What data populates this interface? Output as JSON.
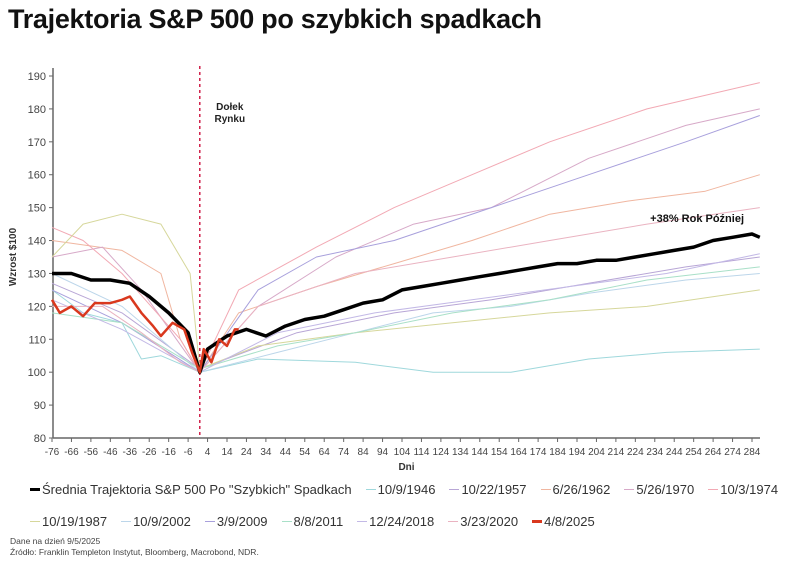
{
  "title": "Trajektoria S&P 500 po szybkich spadkach",
  "footer": {
    "date_note": "Dane na dzień 9/5/2025",
    "source": "Źródło: Franklin Templeton Instytut, Bloomberg, Macrobond, NDR."
  },
  "chart_data": {
    "type": "line",
    "title": "Trajektoria S&P 500 po szybkich spadkach",
    "xlabel": "Dni",
    "ylabel": "Wzrost $100",
    "xlim": [
      -76,
      288
    ],
    "ylim": [
      80,
      190
    ],
    "xticks": [
      -76,
      -66,
      -56,
      -46,
      -36,
      -26,
      -16,
      -6,
      4,
      14,
      24,
      34,
      44,
      54,
      64,
      74,
      84,
      94,
      104,
      114,
      124,
      134,
      144,
      154,
      164,
      174,
      184,
      194,
      204,
      214,
      224,
      234,
      244,
      254,
      264,
      274,
      284
    ],
    "yticks": [
      80,
      90,
      100,
      110,
      120,
      130,
      140,
      150,
      160,
      170,
      180,
      190
    ],
    "grid": false,
    "legend_placement": "bottom",
    "annotations": [
      {
        "text_lines": [
          "Dołek",
          "Rynku"
        ],
        "x": 0,
        "style": "dashed vertical line"
      },
      {
        "text": "+38% Rok Później",
        "x": 284,
        "y": 142
      }
    ],
    "series": [
      {
        "name": "10/9/1946",
        "color": "#9fd8dc",
        "width": 1,
        "points": [
          [
            -76,
            125
          ],
          [
            -60,
            118
          ],
          [
            -40,
            115
          ],
          [
            -30,
            104
          ],
          [
            -20,
            105
          ],
          [
            0,
            100
          ],
          [
            30,
            104
          ],
          [
            80,
            103
          ],
          [
            120,
            100
          ],
          [
            160,
            100
          ],
          [
            200,
            104
          ],
          [
            240,
            106
          ],
          [
            288,
            107
          ]
        ]
      },
      {
        "name": "10/22/1957",
        "color": "#b8a6d6",
        "width": 1,
        "points": [
          [
            -76,
            127
          ],
          [
            -40,
            118
          ],
          [
            0,
            101
          ],
          [
            50,
            112
          ],
          [
            100,
            118
          ],
          [
            150,
            122
          ],
          [
            200,
            127
          ],
          [
            250,
            132
          ],
          [
            288,
            135
          ]
        ]
      },
      {
        "name": "6/26/1962",
        "color": "#f0b6a0",
        "width": 1,
        "points": [
          [
            -76,
            140
          ],
          [
            -40,
            137
          ],
          [
            -20,
            130
          ],
          [
            -10,
            110
          ],
          [
            0,
            100
          ],
          [
            20,
            118
          ],
          [
            60,
            126
          ],
          [
            100,
            133
          ],
          [
            140,
            140
          ],
          [
            180,
            148
          ],
          [
            220,
            152
          ],
          [
            260,
            155
          ],
          [
            288,
            160
          ]
        ]
      },
      {
        "name": "5/26/1970",
        "color": "#d7a9c8",
        "width": 1,
        "points": [
          [
            -76,
            135
          ],
          [
            -50,
            138
          ],
          [
            -30,
            125
          ],
          [
            0,
            100
          ],
          [
            30,
            120
          ],
          [
            70,
            135
          ],
          [
            110,
            145
          ],
          [
            150,
            150
          ],
          [
            200,
            165
          ],
          [
            250,
            175
          ],
          [
            288,
            180
          ]
        ]
      },
      {
        "name": "10/3/1974",
        "color": "#f2a9b4",
        "width": 1,
        "points": [
          [
            -76,
            144
          ],
          [
            -60,
            140
          ],
          [
            -40,
            130
          ],
          [
            -10,
            110
          ],
          [
            0,
            100
          ],
          [
            20,
            125
          ],
          [
            60,
            138
          ],
          [
            100,
            150
          ],
          [
            140,
            160
          ],
          [
            180,
            170
          ],
          [
            230,
            180
          ],
          [
            288,
            188
          ]
        ]
      },
      {
        "name": "10/19/1987",
        "color": "#d6d79b",
        "width": 1,
        "points": [
          [
            -76,
            135
          ],
          [
            -60,
            145
          ],
          [
            -40,
            148
          ],
          [
            -20,
            145
          ],
          [
            -5,
            130
          ],
          [
            0,
            101
          ],
          [
            30,
            108
          ],
          [
            80,
            112
          ],
          [
            130,
            115
          ],
          [
            180,
            118
          ],
          [
            230,
            120
          ],
          [
            288,
            125
          ]
        ]
      },
      {
        "name": "10/9/2002",
        "color": "#bcd6ea",
        "width": 1,
        "points": [
          [
            -76,
            130
          ],
          [
            -40,
            120
          ],
          [
            0,
            100
          ],
          [
            40,
            106
          ],
          [
            80,
            112
          ],
          [
            120,
            118
          ],
          [
            160,
            120
          ],
          [
            200,
            124
          ],
          [
            250,
            128
          ],
          [
            288,
            130
          ]
        ]
      },
      {
        "name": "3/9/2009",
        "color": "#a8a0dc",
        "width": 1,
        "points": [
          [
            -76,
            125
          ],
          [
            -40,
            115
          ],
          [
            0,
            100
          ],
          [
            30,
            125
          ],
          [
            60,
            135
          ],
          [
            100,
            140
          ],
          [
            150,
            150
          ],
          [
            200,
            160
          ],
          [
            250,
            170
          ],
          [
            288,
            178
          ]
        ]
      },
      {
        "name": "8/8/2011",
        "color": "#a9e0c8",
        "width": 1,
        "points": [
          [
            -76,
            118
          ],
          [
            -40,
            115
          ],
          [
            0,
            101
          ],
          [
            40,
            108
          ],
          [
            80,
            112
          ],
          [
            130,
            118
          ],
          [
            180,
            122
          ],
          [
            230,
            128
          ],
          [
            288,
            132
          ]
        ]
      },
      {
        "name": "12/24/2018",
        "color": "#c3b9e6",
        "width": 1,
        "points": [
          [
            -76,
            122
          ],
          [
            -40,
            113
          ],
          [
            0,
            100
          ],
          [
            40,
            112
          ],
          [
            90,
            118
          ],
          [
            140,
            122
          ],
          [
            190,
            126
          ],
          [
            240,
            130
          ],
          [
            288,
            136
          ]
        ]
      },
      {
        "name": "3/23/2020",
        "color": "#eab3c1",
        "width": 1,
        "points": [
          [
            -76,
            120
          ],
          [
            -50,
            120
          ],
          [
            -30,
            112
          ],
          [
            -10,
            103
          ],
          [
            0,
            100
          ],
          [
            30,
            120
          ],
          [
            80,
            130
          ],
          [
            130,
            135
          ],
          [
            180,
            140
          ],
          [
            230,
            145
          ],
          [
            288,
            150
          ]
        ]
      },
      {
        "name": "Średnia Trajektoria S&P 500 Po \"Szybkich\" Spadkach",
        "color": "#000000",
        "width": 3.5,
        "points": [
          [
            -76,
            130
          ],
          [
            -66,
            130
          ],
          [
            -56,
            128
          ],
          [
            -46,
            128
          ],
          [
            -36,
            127
          ],
          [
            -26,
            123
          ],
          [
            -16,
            118
          ],
          [
            -6,
            112
          ],
          [
            0,
            100
          ],
          [
            4,
            107
          ],
          [
            14,
            111
          ],
          [
            24,
            113
          ],
          [
            34,
            111
          ],
          [
            44,
            114
          ],
          [
            54,
            116
          ],
          [
            64,
            117
          ],
          [
            74,
            119
          ],
          [
            84,
            121
          ],
          [
            94,
            122
          ],
          [
            104,
            125
          ],
          [
            114,
            126
          ],
          [
            124,
            127
          ],
          [
            134,
            128
          ],
          [
            144,
            129
          ],
          [
            154,
            130
          ],
          [
            164,
            131
          ],
          [
            174,
            132
          ],
          [
            184,
            133
          ],
          [
            194,
            133
          ],
          [
            204,
            134
          ],
          [
            214,
            134
          ],
          [
            224,
            135
          ],
          [
            234,
            136
          ],
          [
            244,
            137
          ],
          [
            254,
            138
          ],
          [
            264,
            140
          ],
          [
            274,
            141
          ],
          [
            284,
            142
          ],
          [
            288,
            141
          ]
        ]
      },
      {
        "name": "4/8/2025",
        "color": "#d9381e",
        "width": 2.5,
        "points": [
          [
            -76,
            122
          ],
          [
            -72,
            118
          ],
          [
            -66,
            120
          ],
          [
            -60,
            117
          ],
          [
            -54,
            121
          ],
          [
            -46,
            121
          ],
          [
            -40,
            122
          ],
          [
            -36,
            123
          ],
          [
            -30,
            118
          ],
          [
            -24,
            114
          ],
          [
            -20,
            111
          ],
          [
            -14,
            115
          ],
          [
            -8,
            113
          ],
          [
            -4,
            106
          ],
          [
            0,
            100
          ],
          [
            2,
            107
          ],
          [
            6,
            103
          ],
          [
            10,
            110
          ],
          [
            14,
            108
          ],
          [
            18,
            113
          ],
          [
            20,
            113
          ]
        ]
      }
    ],
    "legend_order": [
      11,
      0,
      1,
      2,
      3,
      4,
      5,
      6,
      7,
      8,
      9,
      10,
      12
    ]
  }
}
